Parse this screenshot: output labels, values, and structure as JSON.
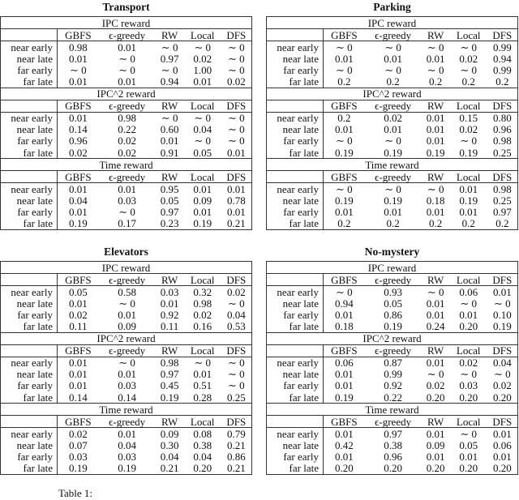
{
  "tables": [
    {
      "title": "Transport",
      "sections": [
        {
          "name": "IPC reward",
          "columns": [
            "GBFS",
            "ϵ-greedy",
            "RW",
            "Local",
            "DFS"
          ],
          "rows": [
            {
              "label": "near early",
              "values": [
                "0.98",
                "0.01",
                "∼ 0",
                "∼ 0",
                "∼ 0"
              ]
            },
            {
              "label": "near late",
              "values": [
                "0.01",
                "∼ 0",
                "0.97",
                "0.02",
                "∼ 0"
              ]
            },
            {
              "label": "far early",
              "values": [
                "∼ 0",
                "∼ 0",
                "∼ 0",
                "1.00",
                "∼ 0"
              ]
            },
            {
              "label": "far late",
              "values": [
                "0.01",
                "0.01",
                "0.94",
                "0.01",
                "0.02"
              ]
            }
          ]
        },
        {
          "name": "IPC^2 reward",
          "columns": [
            "GBFS",
            "ϵ-greedy",
            "RW",
            "Local",
            "DFS"
          ],
          "rows": [
            {
              "label": "near early",
              "values": [
                "0.01",
                "0.98",
                "∼ 0",
                "∼ 0",
                "∼ 0"
              ]
            },
            {
              "label": "near late",
              "values": [
                "0.14",
                "0.22",
                "0.60",
                "0.04",
                "∼ 0"
              ]
            },
            {
              "label": "far early",
              "values": [
                "0.96",
                "0.02",
                "0.01",
                "∼ 0",
                "∼ 0"
              ]
            },
            {
              "label": "far late",
              "values": [
                "0.02",
                "0.02",
                "0.91",
                "0.05",
                "0.01"
              ]
            }
          ]
        },
        {
          "name": "Time reward",
          "columns": [
            "GBFS",
            "ϵ-greedy",
            "RW",
            "Local",
            "DFS"
          ],
          "rows": [
            {
              "label": "near early",
              "values": [
                "0.01",
                "0.01",
                "0.95",
                "0.01",
                "0.01"
              ]
            },
            {
              "label": "near late",
              "values": [
                "0.04",
                "0.03",
                "0.05",
                "0.09",
                "0.78"
              ]
            },
            {
              "label": "far early",
              "values": [
                "0.01",
                "∼ 0",
                "0.97",
                "0.01",
                "0.01"
              ]
            },
            {
              "label": "far late",
              "values": [
                "0.19",
                "0.17",
                "0.23",
                "0.19",
                "0.21"
              ]
            }
          ]
        }
      ]
    },
    {
      "title": "Parking",
      "sections": [
        {
          "name": "IPC reward",
          "columns": [
            "GBFS",
            "ϵ-greedy",
            "RW",
            "Local",
            "DFS"
          ],
          "rows": [
            {
              "label": "near early",
              "values": [
                "∼ 0",
                "∼ 0",
                "∼ 0",
                "∼ 0",
                "0.99"
              ]
            },
            {
              "label": "near late",
              "values": [
                "0.01",
                "0.01",
                "0.01",
                "0.02",
                "0.94"
              ]
            },
            {
              "label": "far early",
              "values": [
                "∼ 0",
                "∼ 0",
                "∼ 0",
                "∼ 0",
                "0.99"
              ]
            },
            {
              "label": "far late",
              "values": [
                "0.2",
                "0.2",
                "0.2",
                "0.2",
                "0.2"
              ]
            }
          ]
        },
        {
          "name": "IPC^2 reward",
          "columns": [
            "GBFS",
            "ϵ-greedy",
            "RW",
            "Local",
            "DFS"
          ],
          "rows": [
            {
              "label": "near early",
              "values": [
                "0.2",
                "0.02",
                "0.01",
                "0.15",
                "0.80"
              ]
            },
            {
              "label": "near late",
              "values": [
                "0.01",
                "0.01",
                "0.01",
                "0.02",
                "0.96"
              ]
            },
            {
              "label": "far early",
              "values": [
                "∼ 0",
                "∼ 0",
                "0.01",
                "∼ 0",
                "0.98"
              ]
            },
            {
              "label": "far late",
              "values": [
                "0.19",
                "0.19",
                "0.19",
                "0.19",
                "0.25"
              ]
            }
          ]
        },
        {
          "name": "Time reward",
          "columns": [
            "GBFS",
            "ϵ-greedy",
            "RW",
            "Local",
            "DFS"
          ],
          "rows": [
            {
              "label": "near early",
              "values": [
                "∼ 0",
                "∼ 0",
                "∼ 0",
                "0.01",
                "0.98"
              ]
            },
            {
              "label": "near late",
              "values": [
                "0.19",
                "0.19",
                "0.18",
                "0.19",
                "0.25"
              ]
            },
            {
              "label": "far early",
              "values": [
                "0.01",
                "0.01",
                "0.01",
                "0.01",
                "0.97"
              ]
            },
            {
              "label": "far late",
              "values": [
                "0.2",
                "0.2",
                "0.2",
                "0.2",
                "0.2"
              ]
            }
          ]
        }
      ]
    },
    {
      "title": "Elevators",
      "sections": [
        {
          "name": "IPC reward",
          "columns": [
            "GBFS",
            "ϵ-greedy",
            "RW",
            "Local",
            "DFS"
          ],
          "rows": [
            {
              "label": "near early",
              "values": [
                "0.05",
                "0.58",
                "0.03",
                "0.32",
                "0.02"
              ]
            },
            {
              "label": "near late",
              "values": [
                "0.01",
                "∼ 0",
                "0.01",
                "0.98",
                "∼ 0"
              ]
            },
            {
              "label": "far early",
              "values": [
                "0.02",
                "0.01",
                "0.92",
                "0.02",
                "0.04"
              ]
            },
            {
              "label": "far late",
              "values": [
                "0.11",
                "0.09",
                "0.11",
                "0.16",
                "0.53"
              ]
            }
          ]
        },
        {
          "name": "IPC^2 reward",
          "columns": [
            "GBFS",
            "ϵ-greedy",
            "RW",
            "Local",
            "DFS"
          ],
          "rows": [
            {
              "label": "near early",
              "values": [
                "0.01",
                "∼ 0",
                "0.98",
                "∼ 0",
                "∼ 0"
              ]
            },
            {
              "label": "near late",
              "values": [
                "0.01",
                "0.01",
                "0.97",
                "0.01",
                "∼ 0"
              ]
            },
            {
              "label": "far early",
              "values": [
                "0.01",
                "0.03",
                "0.45",
                "0.51",
                "∼ 0"
              ]
            },
            {
              "label": "far late",
              "values": [
                "0.14",
                "0.14",
                "0.19",
                "0.28",
                "0.25"
              ]
            }
          ]
        },
        {
          "name": "Time reward",
          "columns": [
            "GBFS",
            "ϵ-greedy",
            "RW",
            "Local",
            "DFS"
          ],
          "rows": [
            {
              "label": "near early",
              "values": [
                "0.02",
                "0.01",
                "0.09",
                "0.08",
                "0.79"
              ]
            },
            {
              "label": "near late",
              "values": [
                "0.07",
                "0.04",
                "0.30",
                "0.38",
                "0.21"
              ]
            },
            {
              "label": "far early",
              "values": [
                "0.03",
                "0.03",
                "0.04",
                "0.04",
                "0.86"
              ]
            },
            {
              "label": "far late",
              "values": [
                "0.19",
                "0.19",
                "0.21",
                "0.20",
                "0.21"
              ]
            }
          ]
        }
      ]
    },
    {
      "title": "No-mystery",
      "sections": [
        {
          "name": "IPC reward",
          "columns": [
            "GBFS",
            "ϵ-greedy",
            "RW",
            "Local",
            "DFS"
          ],
          "rows": [
            {
              "label": "near early",
              "values": [
                "∼ 0",
                "0.93",
                "∼ 0",
                "0.06",
                "0.01"
              ]
            },
            {
              "label": "near late",
              "values": [
                "0.94",
                "0.05",
                "0.01",
                "∼ 0",
                "∼ 0"
              ]
            },
            {
              "label": "far early",
              "values": [
                "0.01",
                "0.86",
                "0.01",
                "0.01",
                "0.10"
              ]
            },
            {
              "label": "far late",
              "values": [
                "0.18",
                "0.19",
                "0.24",
                "0.20",
                "0.19"
              ]
            }
          ]
        },
        {
          "name": "IPC^2 reward",
          "columns": [
            "GBFS",
            "ϵ-greedy",
            "RW",
            "Local",
            "DFS"
          ],
          "rows": [
            {
              "label": "near early",
              "values": [
                "0.06",
                "0.87",
                "0.01",
                "0.02",
                "0.04"
              ]
            },
            {
              "label": "near late",
              "values": [
                "0.01",
                "0.99",
                "∼ 0",
                "∼ 0",
                "∼ 0"
              ]
            },
            {
              "label": "far early",
              "values": [
                "0.01",
                "0.92",
                "0.02",
                "0.03",
                "0.02"
              ]
            },
            {
              "label": "far late",
              "values": [
                "0.19",
                "0.22",
                "0.20",
                "0.20",
                "0.20"
              ]
            }
          ]
        },
        {
          "name": "Time reward",
          "columns": [
            "GBFS",
            "ϵ-greedy",
            "RW",
            "Local",
            "DFS"
          ],
          "rows": [
            {
              "label": "near early",
              "values": [
                "0.01",
                "0.97",
                "0.01",
                "∼ 0",
                "0.01"
              ]
            },
            {
              "label": "near late",
              "values": [
                "0.42",
                "0.38",
                "0.09",
                "0.05",
                "0.06"
              ]
            },
            {
              "label": "far early",
              "values": [
                "0.01",
                "0.96",
                "0.01",
                "0.01",
                "0.01"
              ]
            },
            {
              "label": "far late",
              "values": [
                "0.20",
                "0.20",
                "0.20",
                "0.20",
                "0.20"
              ]
            }
          ]
        }
      ]
    }
  ],
  "caption": "Table 1:"
}
